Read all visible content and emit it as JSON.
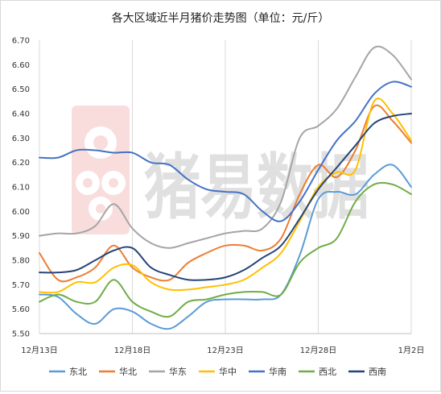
{
  "chart_data": {
    "type": "line",
    "title": "各大区域近半月猪价走势图（单位：元/斤）",
    "xlabel": "",
    "ylabel": "",
    "ylim": [
      5.5,
      6.7
    ],
    "yticks": [
      "5.50",
      "5.60",
      "5.70",
      "5.80",
      "5.90",
      "6.00",
      "6.10",
      "6.20",
      "6.30",
      "6.40",
      "6.50",
      "6.60",
      "6.70"
    ],
    "x": [
      "12月13日",
      "12月14日",
      "12月15日",
      "12月16日",
      "12月17日",
      "12月18日",
      "12月19日",
      "12月20日",
      "12月21日",
      "12月22日",
      "12月23日",
      "12月24日",
      "12月25日",
      "12月26日",
      "12月27日",
      "12月28日",
      "12月29日",
      "12月30日",
      "12月31日",
      "1月1日",
      "1月2日"
    ],
    "xtick_labels": [
      "12月13日",
      "12月18日",
      "12月23日",
      "12月28日",
      "1月2日"
    ],
    "grid": "vertical",
    "legend_position": "bottom",
    "watermark_text": "猪易数据",
    "series": [
      {
        "name": "东北",
        "color": "#5b9bd5",
        "values": [
          5.66,
          5.65,
          5.58,
          5.54,
          5.6,
          5.59,
          5.54,
          5.52,
          5.57,
          5.63,
          5.64,
          5.64,
          5.64,
          5.66,
          5.82,
          6.05,
          6.08,
          6.07,
          6.15,
          6.19,
          6.1
        ]
      },
      {
        "name": "华北",
        "color": "#ed7d31",
        "values": [
          5.83,
          5.72,
          5.73,
          5.77,
          5.86,
          5.77,
          5.73,
          5.72,
          5.79,
          5.83,
          5.86,
          5.86,
          5.84,
          5.89,
          6.07,
          6.19,
          6.14,
          6.25,
          6.43,
          6.37,
          6.28
        ]
      },
      {
        "name": "华东",
        "color": "#a5a5a5",
        "values": [
          5.9,
          5.91,
          5.91,
          5.94,
          6.03,
          5.93,
          5.87,
          5.85,
          5.87,
          5.89,
          5.91,
          5.92,
          5.93,
          6.04,
          6.3,
          6.35,
          6.42,
          6.55,
          6.67,
          6.64,
          6.54
        ]
      },
      {
        "name": "华中",
        "color": "#ffc000",
        "values": [
          5.67,
          5.67,
          5.71,
          5.71,
          5.77,
          5.78,
          5.71,
          5.68,
          5.68,
          5.69,
          5.7,
          5.72,
          5.77,
          5.83,
          5.96,
          6.1,
          6.16,
          6.17,
          6.45,
          6.4,
          6.29
        ]
      },
      {
        "name": "华南",
        "color": "#4472c4",
        "values": [
          6.22,
          6.22,
          6.25,
          6.25,
          6.24,
          6.24,
          6.2,
          6.19,
          6.13,
          6.09,
          6.08,
          6.07,
          6.0,
          5.96,
          6.04,
          6.17,
          6.29,
          6.37,
          6.48,
          6.53,
          6.51
        ]
      },
      {
        "name": "西北",
        "color": "#70ad47",
        "values": [
          5.63,
          5.66,
          5.63,
          5.63,
          5.72,
          5.63,
          5.59,
          5.57,
          5.63,
          5.64,
          5.66,
          5.67,
          5.67,
          5.66,
          5.79,
          5.85,
          5.89,
          6.04,
          6.11,
          6.11,
          6.07
        ]
      },
      {
        "name": "西南",
        "color": "#264478",
        "values": [
          5.75,
          5.75,
          5.76,
          5.8,
          5.84,
          5.85,
          5.77,
          5.74,
          5.72,
          5.72,
          5.73,
          5.76,
          5.81,
          5.86,
          5.97,
          6.09,
          6.18,
          6.27,
          6.36,
          6.39,
          6.4
        ]
      }
    ]
  }
}
